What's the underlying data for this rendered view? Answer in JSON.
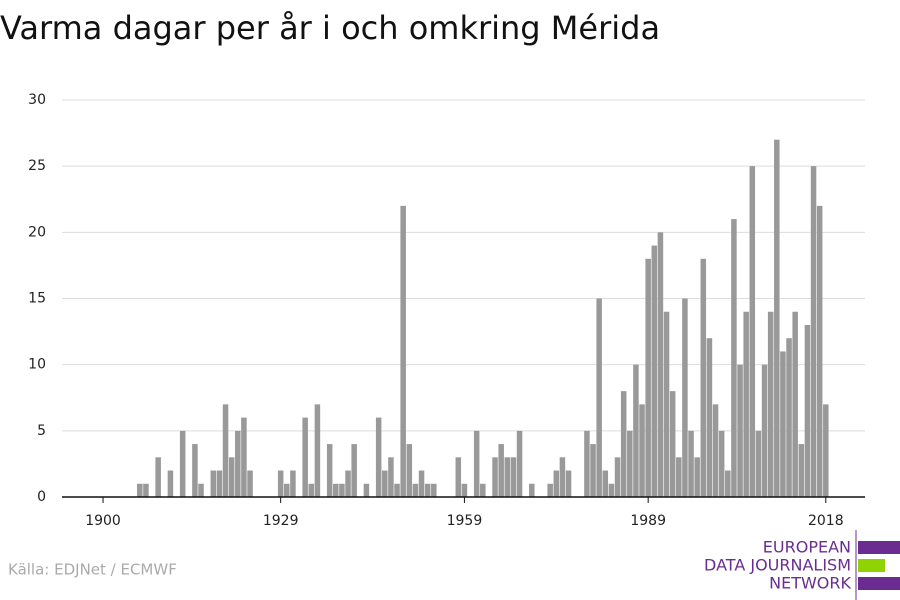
{
  "chart_data": {
    "type": "bar",
    "title": "Varma dagar per år i och omkring Mérida",
    "x": [
      1900,
      1901,
      1902,
      1903,
      1904,
      1905,
      1906,
      1907,
      1908,
      1909,
      1910,
      1911,
      1912,
      1913,
      1914,
      1915,
      1916,
      1917,
      1918,
      1919,
      1920,
      1921,
      1922,
      1923,
      1924,
      1925,
      1926,
      1927,
      1928,
      1929,
      1930,
      1931,
      1932,
      1933,
      1934,
      1935,
      1936,
      1937,
      1938,
      1939,
      1940,
      1941,
      1942,
      1943,
      1944,
      1945,
      1946,
      1947,
      1948,
      1949,
      1950,
      1951,
      1952,
      1953,
      1954,
      1955,
      1956,
      1957,
      1958,
      1959,
      1960,
      1961,
      1962,
      1963,
      1964,
      1965,
      1966,
      1967,
      1968,
      1969,
      1970,
      1971,
      1972,
      1973,
      1974,
      1975,
      1976,
      1977,
      1978,
      1979,
      1980,
      1981,
      1982,
      1983,
      1984,
      1985,
      1986,
      1987,
      1988,
      1989,
      1990,
      1991,
      1992,
      1993,
      1994,
      1995,
      1996,
      1997,
      1998,
      1999,
      2000,
      2001,
      2002,
      2003,
      2004,
      2005,
      2006,
      2007,
      2008,
      2009,
      2010,
      2011,
      2012,
      2013,
      2014,
      2015,
      2016,
      2017,
      2018
    ],
    "values": [
      0,
      0,
      0,
      0,
      0,
      0,
      1,
      1,
      0,
      3,
      0,
      2,
      0,
      5,
      0,
      4,
      1,
      0,
      2,
      2,
      7,
      3,
      5,
      6,
      2,
      0,
      0,
      0,
      0,
      2,
      1,
      2,
      0,
      6,
      1,
      7,
      0,
      4,
      1,
      1,
      2,
      4,
      0,
      1,
      0,
      6,
      2,
      3,
      1,
      22,
      4,
      1,
      2,
      1,
      1,
      0,
      0,
      0,
      3,
      1,
      0,
      5,
      1,
      0,
      3,
      4,
      3,
      3,
      5,
      0,
      1,
      0,
      0,
      1,
      2,
      3,
      2,
      0,
      0,
      5,
      4,
      15,
      2,
      1,
      3,
      8,
      5,
      10,
      7,
      18,
      19,
      20,
      14,
      8,
      3,
      15,
      5,
      3,
      18,
      12,
      7,
      5,
      2,
      21,
      10,
      14,
      25,
      5,
      10,
      14,
      27,
      11,
      12,
      14,
      4,
      13,
      25,
      22,
      7
    ],
    "color": "#999999",
    "xlim": [
      1893.3,
      2024.4
    ],
    "xticks": [
      1900,
      1929,
      1959,
      1989,
      2018
    ],
    "ylim": [
      0,
      30
    ],
    "yticks": [
      0,
      5,
      10,
      15,
      20,
      25,
      30
    ],
    "grid": true,
    "source": "Källa: EDJNet / ECMWF"
  },
  "logo": {
    "lines": [
      "EUROPEAN",
      "DATA JOURNALISM",
      "NETWORK"
    ]
  }
}
